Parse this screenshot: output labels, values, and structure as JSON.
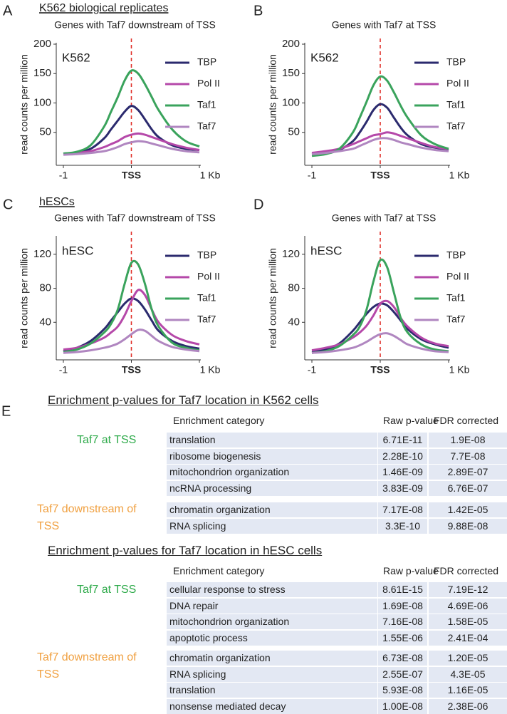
{
  "panel_labels": [
    "A",
    "B",
    "C",
    "D",
    "E"
  ],
  "headings": [
    "K562 biological replicates",
    "hESCs"
  ],
  "chart_data": [
    {
      "type": "line",
      "title": "Genes with Taf7 downstream of TSS",
      "annotation": "K562",
      "ylabel": "read counts per million",
      "x": [
        -1,
        -0.8,
        -0.6,
        -0.4,
        -0.3,
        -0.2,
        -0.1,
        0,
        0.1,
        0.2,
        0.3,
        0.4,
        0.6,
        0.8,
        1
      ],
      "xlim": [
        -1,
        1
      ],
      "xticks": [
        {
          "value": -1,
          "label": "-1"
        },
        {
          "value": 0,
          "label": "TSS"
        },
        {
          "value": 1,
          "label": "1 Kb"
        }
      ],
      "ylim": [
        0,
        200
      ],
      "yticks": [
        50,
        100,
        150,
        200
      ],
      "vline": 0,
      "vline_color": "#e0312b",
      "series": [
        {
          "name": "TBP",
          "color": "#2b2a6e",
          "values": [
            14,
            16,
            22,
            40,
            55,
            70,
            85,
            95,
            88,
            72,
            55,
            42,
            28,
            22,
            20
          ]
        },
        {
          "name": "Pol II",
          "color": "#b548a9",
          "values": [
            14,
            15,
            18,
            25,
            30,
            35,
            42,
            46,
            48,
            46,
            42,
            38,
            30,
            24,
            20
          ]
        },
        {
          "name": "Taf1",
          "color": "#3aa35c",
          "values": [
            14,
            17,
            28,
            60,
            85,
            110,
            138,
            155,
            150,
            132,
            110,
            88,
            55,
            35,
            26
          ]
        },
        {
          "name": "Taf7",
          "color": "#b086c0",
          "values": [
            12,
            13,
            15,
            18,
            21,
            25,
            30,
            33,
            35,
            34,
            31,
            28,
            22,
            18,
            16
          ]
        }
      ]
    },
    {
      "type": "line",
      "title": "Genes with Taf7 at TSS",
      "annotation": "K562",
      "ylabel": "read counts per million",
      "x": [
        -1,
        -0.8,
        -0.6,
        -0.4,
        -0.3,
        -0.2,
        -0.1,
        0,
        0.1,
        0.2,
        0.3,
        0.4,
        0.6,
        0.8,
        1
      ],
      "xlim": [
        -1,
        1
      ],
      "xticks": [
        {
          "value": -1,
          "label": "-1"
        },
        {
          "value": 0,
          "label": "TSS"
        },
        {
          "value": 1,
          "label": "1 Kb"
        }
      ],
      "ylim": [
        0,
        200
      ],
      "yticks": [
        50,
        100,
        150,
        200
      ],
      "vline": 0,
      "vline_color": "#e0312b",
      "series": [
        {
          "name": "TBP",
          "color": "#2b2a6e",
          "values": [
            13,
            15,
            20,
            35,
            50,
            68,
            88,
            98,
            92,
            75,
            58,
            45,
            30,
            24,
            20
          ]
        },
        {
          "name": "Pol II",
          "color": "#b548a9",
          "values": [
            15,
            18,
            22,
            30,
            35,
            40,
            45,
            47,
            50,
            48,
            44,
            40,
            32,
            25,
            22
          ]
        },
        {
          "name": "Taf1",
          "color": "#3aa35c",
          "values": [
            10,
            13,
            22,
            50,
            75,
            102,
            130,
            145,
            138,
            118,
            95,
            75,
            45,
            30,
            22
          ]
        },
        {
          "name": "Taf7",
          "color": "#b086c0",
          "values": [
            13,
            15,
            18,
            22,
            27,
            32,
            37,
            40,
            40,
            37,
            33,
            30,
            24,
            20,
            18
          ]
        }
      ]
    },
    {
      "type": "line",
      "title": "Genes with Taf7 downstream of TSS",
      "annotation": "hESC",
      "ylabel": "read counts per million",
      "x": [
        -1,
        -0.8,
        -0.6,
        -0.4,
        -0.3,
        -0.2,
        -0.1,
        0,
        0.1,
        0.2,
        0.3,
        0.4,
        0.6,
        0.8,
        1
      ],
      "xlim": [
        -1,
        1
      ],
      "xticks": [
        {
          "value": -1,
          "label": "-1"
        },
        {
          "value": 0,
          "label": "TSS"
        },
        {
          "value": 1,
          "label": "1 Kb"
        }
      ],
      "ylim": [
        0,
        140
      ],
      "yticks": [
        40,
        80,
        120
      ],
      "vline": 0,
      "vline_color": "#e0312b",
      "series": [
        {
          "name": "TBP",
          "color": "#2b2a6e",
          "values": [
            6,
            10,
            18,
            32,
            42,
            52,
            62,
            68,
            65,
            55,
            42,
            30,
            18,
            12,
            9
          ]
        },
        {
          "name": "Pol II",
          "color": "#b548a9",
          "values": [
            8,
            10,
            15,
            22,
            28,
            35,
            48,
            65,
            78,
            72,
            55,
            40,
            25,
            18,
            14
          ]
        },
        {
          "name": "Taf1",
          "color": "#3aa35c",
          "values": [
            5,
            8,
            15,
            28,
            38,
            55,
            85,
            110,
            108,
            85,
            55,
            35,
            16,
            10,
            7
          ]
        },
        {
          "name": "Taf7",
          "color": "#b086c0",
          "values": [
            4,
            5,
            7,
            10,
            12,
            15,
            20,
            26,
            31,
            30,
            24,
            18,
            11,
            8,
            6
          ]
        }
      ]
    },
    {
      "type": "line",
      "title": "Genes with Taf7 at TSS",
      "annotation": "hESC",
      "ylabel": "read counts per million",
      "x": [
        -1,
        -0.8,
        -0.6,
        -0.4,
        -0.3,
        -0.2,
        -0.1,
        0,
        0.1,
        0.2,
        0.3,
        0.4,
        0.6,
        0.8,
        1
      ],
      "xlim": [
        -1,
        1
      ],
      "xticks": [
        {
          "value": -1,
          "label": "-1"
        },
        {
          "value": 0,
          "label": "TSS"
        },
        {
          "value": 1,
          "label": "1 Kb"
        }
      ],
      "ylim": [
        0,
        140
      ],
      "yticks": [
        40,
        80,
        120
      ],
      "vline": 0,
      "vline_color": "#e0312b",
      "series": [
        {
          "name": "TBP",
          "color": "#2b2a6e",
          "values": [
            5,
            8,
            15,
            30,
            40,
            50,
            58,
            62,
            60,
            52,
            42,
            32,
            20,
            14,
            10
          ]
        },
        {
          "name": "Pol II",
          "color": "#b548a9",
          "values": [
            7,
            10,
            14,
            22,
            28,
            36,
            48,
            62,
            65,
            58,
            45,
            35,
            22,
            15,
            12
          ]
        },
        {
          "name": "Taf1",
          "color": "#3aa35c",
          "values": [
            4,
            6,
            12,
            25,
            35,
            55,
            88,
            113,
            105,
            75,
            45,
            28,
            14,
            8,
            6
          ]
        },
        {
          "name": "Taf7",
          "color": "#b086c0",
          "values": [
            4,
            5,
            7,
            10,
            13,
            17,
            22,
            26,
            27,
            24,
            19,
            14,
            9,
            6,
            5
          ]
        }
      ]
    }
  ],
  "tables": [
    {
      "title": "Enrichment p-values for Taf7 location in K562 cells",
      "header": [
        "Enrichment category",
        "Raw p-value",
        "FDR corrected"
      ],
      "groups": [
        {
          "label": "Taf7 at TSS",
          "color": "#2eaa4a",
          "rows": [
            [
              "translation",
              "6.71E-11",
              "1.9E-08"
            ],
            [
              "ribosome biogenesis",
              "2.28E-10",
              "7.7E-08"
            ],
            [
              "mitochondrion organization",
              "1.46E-09",
              "2.89E-07"
            ],
            [
              "ncRNA processing",
              "3.83E-09",
              "6.76E-07"
            ]
          ]
        },
        {
          "label": "Taf7 downstream of TSS",
          "color": "#f0a040",
          "rows": [
            [
              "chromatin organization",
              "7.17E-08",
              "1.42E-05"
            ],
            [
              "RNA splicing",
              "3.3E-10",
              "9.88E-08"
            ]
          ]
        }
      ]
    },
    {
      "title": "Enrichment p-values for Taf7 location in hESC cells",
      "header": [
        "Enrichment category",
        "Raw p-value",
        "FDR corrected"
      ],
      "groups": [
        {
          "label": "Taf7 at TSS",
          "color": "#2eaa4a",
          "rows": [
            [
              "cellular response to stress",
              "8.61E-15",
              "7.19E-12"
            ],
            [
              "DNA repair",
              "1.69E-08",
              "4.69E-06"
            ],
            [
              "mitochondrion organization",
              "7.16E-08",
              "1.58E-05"
            ],
            [
              "apoptotic process",
              "1.55E-06",
              "2.41E-04"
            ]
          ]
        },
        {
          "label": "Taf7 downstream of TSS",
          "color": "#f0a040",
          "rows": [
            [
              "chromatin organization",
              "6.73E-08",
              "1.20E-05"
            ],
            [
              "RNA splicing",
              "2.55E-07",
              "4.3E-05"
            ],
            [
              "translation",
              "5.93E-08",
              "1.16E-05"
            ],
            [
              "nonsense mediated decay",
              "1.00E-08",
              "2.38E-06"
            ]
          ]
        }
      ]
    }
  ]
}
